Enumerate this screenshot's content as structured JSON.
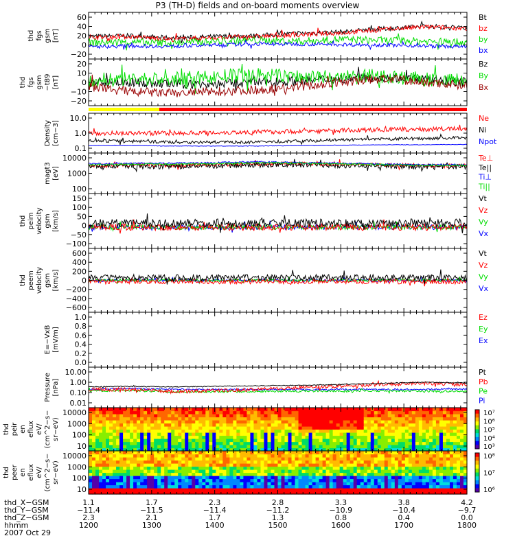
{
  "title": "P3 (TH-D) fields and on-board moments overview",
  "chart_data": [
    {
      "type": "line",
      "id": "p1",
      "ylabel": [
        "thd",
        "fgs",
        "gsm",
        "[nT]"
      ],
      "yticks": [
        "60",
        "40",
        "20",
        "0",
        "−20"
      ],
      "ylim": [
        -20,
        60
      ],
      "scale": "lin",
      "legend": [
        {
          "label": "Bt",
          "color": "#000000"
        },
        {
          "label": "bz",
          "color": "#ff0000"
        },
        {
          "label": "by",
          "color": "#00dd00"
        },
        {
          "label": "bx",
          "color": "#0000ff"
        }
      ],
      "series": [
        {
          "name": "Bt",
          "base": [
            18,
            20,
            15,
            18,
            20,
            25,
            28,
            35,
            40,
            38
          ],
          "noise": 5
        },
        {
          "name": "bz",
          "base": [
            16,
            18,
            12,
            16,
            18,
            22,
            26,
            33,
            39,
            36
          ],
          "noise": 5
        },
        {
          "name": "by",
          "base": [
            5,
            6,
            4,
            8,
            10,
            8,
            12,
            10,
            8,
            6
          ],
          "noise": 8
        },
        {
          "name": "bx",
          "base": [
            -4,
            -2,
            -3,
            0,
            2,
            2,
            1,
            0,
            -2,
            -4
          ],
          "noise": 4
        }
      ]
    },
    {
      "type": "line",
      "id": "p2",
      "ylabel": [
        "thd",
        "fgs",
        "gsm",
        "−t89",
        "[nT]"
      ],
      "yticks": [
        "20",
        "10",
        "0",
        "−10",
        "−20"
      ],
      "ylim": [
        -20,
        20
      ],
      "scale": "lin",
      "legend": [
        {
          "label": "Bz",
          "color": "#000000"
        },
        {
          "label": "By",
          "color": "#00dd00"
        },
        {
          "label": "Bx",
          "color": "#990000"
        }
      ],
      "series": [
        {
          "name": "Bz",
          "base": [
            0,
            0,
            -2,
            -2,
            0,
            2,
            4,
            6,
            3,
            0
          ],
          "noise": 5
        },
        {
          "name": "By",
          "base": [
            2,
            4,
            3,
            6,
            8,
            6,
            5,
            7,
            3,
            2
          ],
          "noise": 8
        },
        {
          "name": "Bx",
          "base": [
            -5,
            -10,
            -12,
            -10,
            -8,
            -5,
            0,
            4,
            0,
            -3
          ],
          "noise": 5
        }
      ]
    },
    {
      "type": "line",
      "id": "p3",
      "ylabel": [
        "Density",
        "[cm−3]"
      ],
      "yticks": [
        "10.0",
        "1.0",
        "0.1"
      ],
      "ylim": [
        0.1,
        10
      ],
      "scale": "log",
      "legend": [
        {
          "label": "Ne",
          "color": "#ff0000"
        },
        {
          "label": "Ni",
          "color": "#000000"
        },
        {
          "label": "Npot",
          "color": "#0000ff"
        }
      ],
      "series": [
        {
          "name": "Ne",
          "base": [
            1,
            1,
            1,
            1.1,
            1.2,
            1.3,
            1.5,
            1.7,
            1.8,
            2
          ],
          "noise": 0.3
        },
        {
          "name": "Ni",
          "base": [
            0.3,
            0.3,
            0.25,
            0.25,
            0.25,
            0.3,
            0.35,
            0.4,
            0.45,
            0.5
          ],
          "noise": 0.2
        },
        {
          "name": "Npot",
          "base": [
            0.15,
            0.15,
            0.14,
            0.14,
            0.14,
            0.15,
            0.16,
            0.17,
            0.17,
            0.18
          ],
          "noise": 0.03
        }
      ]
    },
    {
      "type": "line",
      "id": "p4",
      "ylabel": [
        "magt3",
        "[eV]"
      ],
      "yticks": [
        "10000",
        "1000",
        "100"
      ],
      "ylim": [
        100,
        10000
      ],
      "scale": "log",
      "legend": [
        {
          "label": "Te⊥",
          "color": "#ff0000"
        },
        {
          "label": "Te||",
          "color": "#000000"
        },
        {
          "label": "Ti⊥",
          "color": "#0000ff"
        },
        {
          "label": "Ti||",
          "color": "#00dd00"
        }
      ],
      "series": [
        {
          "name": "Te⊥",
          "base": [
            3000,
            3500,
            3200,
            3600,
            4000,
            4200,
            3800,
            3500,
            3000,
            3200
          ],
          "noise": 0.25
        },
        {
          "name": "Te||",
          "base": [
            2800,
            3000,
            2800,
            3000,
            3500,
            3600,
            3300,
            3000,
            2600,
            2800
          ],
          "noise": 0.35
        },
        {
          "name": "Ti⊥",
          "base": [
            4000,
            4500,
            4500,
            4800,
            5500,
            5000,
            4500,
            4000,
            3500,
            3500
          ],
          "noise": 0.1
        },
        {
          "name": "Ti||",
          "base": [
            3500,
            4000,
            4000,
            4200,
            4800,
            4500,
            4000,
            3600,
            3200,
            3200
          ],
          "noise": 0.1
        }
      ]
    },
    {
      "type": "line",
      "id": "p5",
      "ylabel": [
        "thd",
        "peim",
        "velocity",
        "gsm",
        "[km/s]"
      ],
      "yticks": [
        "150",
        "100",
        "50",
        "0",
        "−50",
        "−100"
      ],
      "ylim": [
        -100,
        175
      ],
      "scale": "lin",
      "legend": [
        {
          "label": "Vt",
          "color": "#000000"
        },
        {
          "label": "Vz",
          "color": "#ff0000"
        },
        {
          "label": "Vy",
          "color": "#00dd00"
        },
        {
          "label": "Vx",
          "color": "#0000ff"
        }
      ],
      "series": [
        {
          "name": "Vx",
          "base": [
            0,
            0,
            0,
            0,
            0,
            0,
            0,
            0,
            0,
            0
          ],
          "noise": 15
        },
        {
          "name": "Vy",
          "base": [
            0,
            0,
            0,
            0,
            0,
            0,
            0,
            0,
            0,
            0
          ],
          "noise": 15
        },
        {
          "name": "Vz",
          "base": [
            0,
            0,
            0,
            0,
            0,
            0,
            0,
            0,
            0,
            0
          ],
          "noise": 20
        },
        {
          "name": "Vt",
          "base": [
            25,
            25,
            25,
            25,
            25,
            25,
            25,
            25,
            25,
            25
          ],
          "noise": 25
        }
      ]
    },
    {
      "type": "line",
      "id": "p6",
      "ylabel": [
        "thd",
        "peem",
        "velocity",
        "gsm",
        "[km/s]"
      ],
      "yticks": [
        "600",
        "400",
        "200",
        "0",
        "−200",
        "−400",
        "−600"
      ],
      "ylim": [
        -600,
        600
      ],
      "scale": "lin",
      "legend": [
        {
          "label": "Vt",
          "color": "#000000"
        },
        {
          "label": "Vz",
          "color": "#ff0000"
        },
        {
          "label": "Vy",
          "color": "#00dd00"
        },
        {
          "label": "Vx",
          "color": "#0000ff"
        }
      ],
      "series": [
        {
          "name": "Vx",
          "base": [
            0,
            0,
            0,
            0,
            0,
            0,
            0,
            0,
            0,
            0
          ],
          "noise": 30
        },
        {
          "name": "Vy",
          "base": [
            0,
            0,
            0,
            0,
            0,
            0,
            0,
            0,
            0,
            0
          ],
          "noise": 30
        },
        {
          "name": "Vz",
          "base": [
            -30,
            -30,
            -30,
            -30,
            -30,
            -30,
            -30,
            -30,
            -30,
            -30
          ],
          "noise": 50
        },
        {
          "name": "Vt",
          "base": [
            60,
            60,
            60,
            60,
            60,
            60,
            60,
            60,
            60,
            60
          ],
          "noise": 70
        }
      ]
    },
    {
      "type": "line",
      "id": "p7",
      "ylabel": [
        "E=−VxB",
        "[mV/m]"
      ],
      "yticks": [
        "1.0",
        "0.8",
        "0.6",
        "0.4",
        "0.2",
        "0.0"
      ],
      "ylim": [
        0,
        1
      ],
      "scale": "lin",
      "legend": [
        {
          "label": "Ez",
          "color": "#ff0000"
        },
        {
          "label": "Ey",
          "color": "#00dd00"
        },
        {
          "label": "Ex",
          "color": "#0000ff"
        }
      ],
      "series": []
    },
    {
      "type": "line",
      "id": "p8",
      "ylabel": [
        "Pressure",
        "[nPa]"
      ],
      "yticks": [
        "10.00",
        "1.00",
        "0.10",
        "0.01"
      ],
      "ylim": [
        0.01,
        10
      ],
      "scale": "log",
      "legend": [
        {
          "label": "Pt",
          "color": "#000000"
        },
        {
          "label": "Pb",
          "color": "#ff0000"
        },
        {
          "label": "Pe",
          "color": "#00dd00"
        },
        {
          "label": "Pi",
          "color": "#0000ff"
        }
      ],
      "series": [
        {
          "name": "Pi",
          "base": [
            0.2,
            0.25,
            0.2,
            0.2,
            0.2,
            0.2,
            0.2,
            0.2,
            0.2,
            0.22
          ],
          "noise": 0.15
        },
        {
          "name": "Pe",
          "base": [
            0.15,
            0.15,
            0.12,
            0.12,
            0.13,
            0.14,
            0.15,
            0.15,
            0.13,
            0.14
          ],
          "noise": 0.2
        },
        {
          "name": "Pb",
          "base": [
            0.2,
            0.2,
            0.12,
            0.15,
            0.2,
            0.3,
            0.4,
            0.6,
            0.8,
            0.6
          ],
          "noise": 0.35
        },
        {
          "name": "Pt",
          "base": [
            0.35,
            0.4,
            0.35,
            0.4,
            0.45,
            0.5,
            0.6,
            0.8,
            1.0,
            0.85
          ],
          "noise": 0.08
        }
      ]
    },
    {
      "type": "heatmap",
      "id": "p9",
      "ylabel": [
        "thd",
        "peir",
        "en",
        "eflux",
        "eV/",
        "(cm^2−s−",
        "sr−eV)"
      ],
      "yticks": [
        "10000",
        "1000",
        "100",
        "10"
      ],
      "ylim": [
        10,
        20000
      ],
      "scale": "log",
      "colorbar_ticks": [
        "10⁷",
        "10⁶",
        "10⁵",
        "10⁴",
        "10³"
      ]
    },
    {
      "type": "heatmap",
      "id": "p10",
      "ylabel": [
        "thd",
        "peer",
        "en",
        "eflux",
        "eV/",
        "(cm^2−s−",
        "sr−eV)"
      ],
      "yticks": [
        "10000",
        "1000",
        "100",
        "10"
      ],
      "ylim": [
        10,
        20000
      ],
      "scale": "log",
      "colorbar_ticks": [
        "10⁸",
        "10⁷",
        "10⁶"
      ]
    }
  ],
  "ephemeris": {
    "rows": [
      {
        "label": "thd_X−GSM",
        "values": [
          "1.1",
          "1.7",
          "2.3",
          "2.8",
          "3.3",
          "3.8",
          "4.2"
        ]
      },
      {
        "label": "thd_Y−GSM",
        "values": [
          "−11.4",
          "−11.5",
          "−11.4",
          "−11.2",
          "−10.9",
          "−10.4",
          "−9.7"
        ]
      },
      {
        "label": "thd_Z−GSM",
        "values": [
          "2.3",
          "2.1",
          "1.7",
          "1.3",
          "0.8",
          "0.4",
          "0.0"
        ]
      },
      {
        "label": "hhmm",
        "values": [
          "1200",
          "1300",
          "1400",
          "1500",
          "1600",
          "1700",
          "1800"
        ]
      }
    ],
    "date": "2007 Oct 29"
  }
}
